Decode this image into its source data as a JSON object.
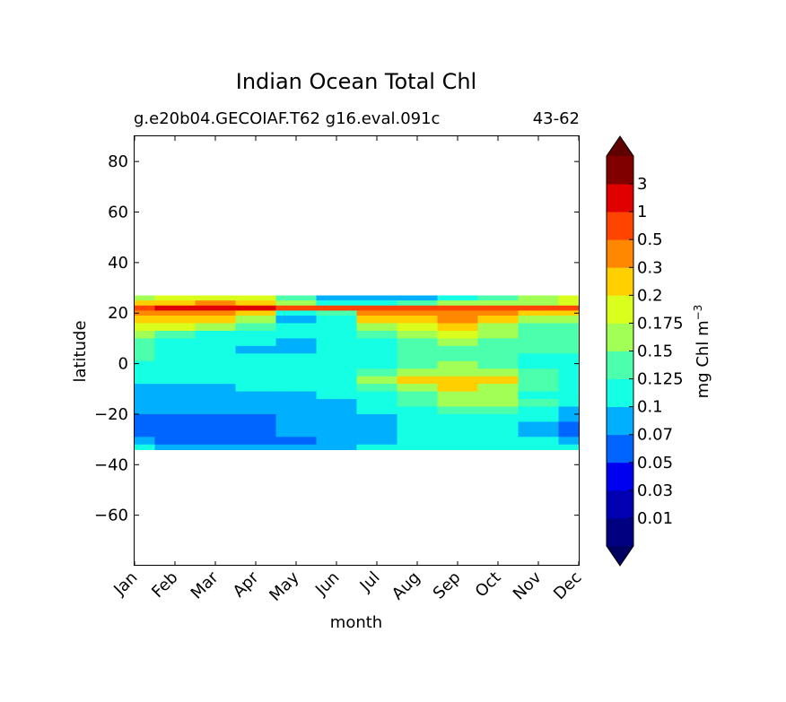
{
  "chart_data": {
    "type": "heatmap",
    "title": "Indian Ocean Total Chl",
    "subtitle_left": "g.e20b04.GECOIAF.T62 g16.eval.091c",
    "subtitle_right": "43-62",
    "xlabel": "month",
    "ylabel": "latitude",
    "x_ticks": [
      "Jan",
      "Feb",
      "Mar",
      "Apr",
      "May",
      "Jun",
      "Jul",
      "Aug",
      "Sep",
      "Oct",
      "Nov",
      "Dec"
    ],
    "y_ticks": [
      80,
      60,
      40,
      20,
      0,
      -20,
      -40,
      -60
    ],
    "y_tick_labels": [
      "80",
      "60",
      "40",
      "20",
      "0",
      "−20",
      "−40",
      "−60"
    ],
    "ylim": [
      -80,
      90
    ],
    "data_lat_range": [
      -34,
      27
    ],
    "colorbar": {
      "label": "mg Chl m",
      "label_exponent": "−3",
      "extend": "both",
      "tick_labels": [
        "0.01",
        "0.03",
        "0.05",
        "0.07",
        "0.1",
        "0.125",
        "0.15",
        "0.175",
        "0.2",
        "0.3",
        "0.5",
        "1",
        "3"
      ],
      "colors": [
        "#000080",
        "#0000b2",
        "#0000f1",
        "#0064ff",
        "#00b0ff",
        "#14ffe3",
        "#4bffac",
        "#a2ff55",
        "#dbff1c",
        "#ffd000",
        "#ff8800",
        "#ff4400",
        "#e00000",
        "#800000"
      ],
      "under_color": "#000060",
      "over_color": "#600000"
    },
    "bands": [
      {
        "lat_from": 27,
        "lat_to": 25,
        "values": [
          0.17,
          0.19,
          0.19,
          0.19,
          0.14,
          0.09,
          0.09,
          0.09,
          0.12,
          0.14,
          0.16,
          0.18
        ]
      },
      {
        "lat_from": 25,
        "lat_to": 23,
        "values": [
          0.22,
          0.28,
          0.35,
          0.25,
          0.16,
          0.12,
          0.12,
          0.14,
          0.15,
          0.15,
          0.16,
          0.18
        ]
      },
      {
        "lat_from": 23,
        "lat_to": 21,
        "values": [
          0.6,
          1.2,
          1.5,
          1.2,
          0.8,
          0.6,
          0.8,
          0.9,
          0.9,
          0.8,
          0.7,
          0.7
        ]
      },
      {
        "lat_from": 21,
        "lat_to": 19,
        "values": [
          0.3,
          0.32,
          0.3,
          0.25,
          0.12,
          0.14,
          0.3,
          0.35,
          0.38,
          0.3,
          0.22,
          0.2
        ]
      },
      {
        "lat_from": 19,
        "lat_to": 16,
        "values": [
          0.22,
          0.21,
          0.2,
          0.16,
          0.08,
          0.12,
          0.22,
          0.28,
          0.3,
          0.2,
          0.16,
          0.16
        ]
      },
      {
        "lat_from": 16,
        "lat_to": 13,
        "values": [
          0.19,
          0.18,
          0.16,
          0.13,
          0.1,
          0.11,
          0.15,
          0.18,
          0.2,
          0.16,
          0.14,
          0.14
        ]
      },
      {
        "lat_from": 13,
        "lat_to": 10,
        "values": [
          0.16,
          0.14,
          0.12,
          0.11,
          0.1,
          0.11,
          0.13,
          0.16,
          0.19,
          0.15,
          0.14,
          0.14
        ]
      },
      {
        "lat_from": 10,
        "lat_to": 7,
        "values": [
          0.14,
          0.12,
          0.11,
          0.1,
          0.09,
          0.1,
          0.12,
          0.14,
          0.15,
          0.13,
          0.13,
          0.13
        ]
      },
      {
        "lat_from": 7,
        "lat_to": 4,
        "values": [
          0.13,
          0.12,
          0.1,
          0.08,
          0.09,
          0.1,
          0.12,
          0.13,
          0.14,
          0.13,
          0.13,
          0.13
        ]
      },
      {
        "lat_from": 4,
        "lat_to": 1,
        "values": [
          0.13,
          0.12,
          0.11,
          0.1,
          0.1,
          0.11,
          0.12,
          0.13,
          0.14,
          0.13,
          0.12,
          0.12
        ]
      },
      {
        "lat_from": 1,
        "lat_to": -2,
        "values": [
          0.12,
          0.12,
          0.11,
          0.1,
          0.1,
          0.11,
          0.12,
          0.13,
          0.15,
          0.14,
          0.12,
          0.12
        ]
      },
      {
        "lat_from": -2,
        "lat_to": -5,
        "values": [
          0.11,
          0.11,
          0.1,
          0.1,
          0.1,
          0.11,
          0.13,
          0.16,
          0.17,
          0.16,
          0.13,
          0.11
        ]
      },
      {
        "lat_from": -5,
        "lat_to": -8,
        "values": [
          0.1,
          0.1,
          0.1,
          0.1,
          0.1,
          0.11,
          0.15,
          0.22,
          0.25,
          0.22,
          0.14,
          0.11
        ]
      },
      {
        "lat_from": -8,
        "lat_to": -11,
        "values": [
          0.09,
          0.09,
          0.09,
          0.1,
          0.1,
          0.1,
          0.13,
          0.17,
          0.2,
          0.17,
          0.13,
          0.1
        ]
      },
      {
        "lat_from": -11,
        "lat_to": -14,
        "values": [
          0.09,
          0.09,
          0.09,
          0.09,
          0.09,
          0.1,
          0.11,
          0.14,
          0.16,
          0.15,
          0.12,
          0.1
        ]
      },
      {
        "lat_from": -14,
        "lat_to": -17,
        "values": [
          0.08,
          0.08,
          0.08,
          0.08,
          0.09,
          0.09,
          0.1,
          0.14,
          0.16,
          0.16,
          0.13,
          0.1
        ]
      },
      {
        "lat_from": -17,
        "lat_to": -20,
        "values": [
          0.08,
          0.08,
          0.08,
          0.08,
          0.08,
          0.09,
          0.1,
          0.12,
          0.14,
          0.13,
          0.11,
          0.09
        ]
      },
      {
        "lat_from": -20,
        "lat_to": -23,
        "values": [
          0.06,
          0.06,
          0.06,
          0.06,
          0.07,
          0.08,
          0.09,
          0.11,
          0.12,
          0.12,
          0.1,
          0.08
        ]
      },
      {
        "lat_from": -23,
        "lat_to": -26,
        "values": [
          0.05,
          0.06,
          0.06,
          0.06,
          0.07,
          0.08,
          0.09,
          0.1,
          0.11,
          0.1,
          0.09,
          0.06
        ]
      },
      {
        "lat_from": -26,
        "lat_to": -29,
        "values": [
          0.06,
          0.06,
          0.06,
          0.06,
          0.07,
          0.08,
          0.09,
          0.1,
          0.11,
          0.1,
          0.08,
          0.06
        ]
      },
      {
        "lat_from": -29,
        "lat_to": -32,
        "values": [
          0.08,
          0.06,
          0.06,
          0.06,
          0.06,
          0.08,
          0.09,
          0.1,
          0.11,
          0.11,
          0.1,
          0.08
        ]
      },
      {
        "lat_from": -32,
        "lat_to": -34,
        "values": [
          0.1,
          0.09,
          0.09,
          0.09,
          0.08,
          0.09,
          0.1,
          0.11,
          0.11,
          0.11,
          0.11,
          0.1
        ]
      }
    ]
  }
}
